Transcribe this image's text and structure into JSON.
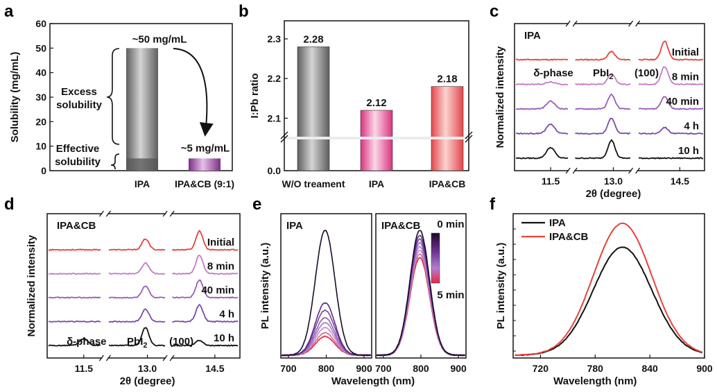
{
  "chart_data": [
    {
      "panel": "a",
      "type": "bar",
      "ylabel": "Solubility (mg/mL)",
      "ylim": [
        0,
        60
      ],
      "yticks": [
        0,
        10,
        20,
        30,
        40,
        50,
        60
      ],
      "categories": [
        "IPA",
        "IPA&CB (9:1)"
      ],
      "values": [
        50,
        5
      ],
      "effective_portion": 5,
      "annotations": {
        "v1": "~50 mg/mL",
        "v2": "~5 mg/mL",
        "excess": [
          "Excess",
          "solubility"
        ],
        "effective": [
          "Effective",
          "solubility"
        ]
      },
      "colors": [
        "#8a8a8a",
        "#a45ca8"
      ]
    },
    {
      "panel": "b",
      "type": "bar",
      "ylabel": "I:Pb ratio",
      "ylim": [
        2.0,
        2.3
      ],
      "yticks": [
        0.0,
        2.1,
        2.2,
        2.3
      ],
      "axis_break": true,
      "categories": [
        "W/O treament",
        "IPA",
        "IPA&CB"
      ],
      "values": [
        2.28,
        2.12,
        2.18
      ],
      "value_labels": [
        "2.28",
        "2.12",
        "2.18"
      ],
      "colors": [
        "#7d7d7d",
        "#e0609c",
        "#ea6a6a"
      ]
    },
    {
      "panel": "c",
      "type": "line",
      "solvent": "IPA",
      "ylabel": "Normalized intensity",
      "xlabel": "2θ (degree)",
      "xticks": [
        "11.5",
        "13.0",
        "14.5"
      ],
      "peaks": [
        "δ-phase",
        "PbI2",
        "(100)"
      ],
      "series": [
        {
          "name": "Initial",
          "delta": 0.0,
          "pbi2": 0.45,
          "p100": 0.9
        },
        {
          "name": "8 min",
          "delta": 0.15,
          "pbi2": 0.6,
          "p100": 0.85
        },
        {
          "name": "40 min",
          "delta": 0.5,
          "pbi2": 0.8,
          "p100": 0.6
        },
        {
          "name": "4 h",
          "delta": 0.6,
          "pbi2": 0.85,
          "p100": 0.3
        },
        {
          "name": "10 h",
          "delta": 0.7,
          "pbi2": 1.0,
          "p100": 0.0
        }
      ]
    },
    {
      "panel": "d",
      "type": "line",
      "solvent": "IPA&CB",
      "ylabel": "Normalized intensity",
      "xlabel": "2θ (degree)",
      "xticks": [
        "11.5",
        "13.0",
        "14.5"
      ],
      "peaks": [
        "δ-phase",
        "PbI2",
        "(100)"
      ],
      "series": [
        {
          "name": "Initial",
          "delta": 0.0,
          "pbi2": 0.6,
          "p100": 0.9
        },
        {
          "name": "8 min",
          "delta": 0.0,
          "pbi2": 0.6,
          "p100": 0.9
        },
        {
          "name": "40 min",
          "delta": 0.0,
          "pbi2": 0.65,
          "p100": 0.85
        },
        {
          "name": "4 h",
          "delta": 0.0,
          "pbi2": 0.7,
          "p100": 0.8
        },
        {
          "name": "10 h",
          "delta": 0.45,
          "pbi2": 1.0,
          "p100": 0.25
        }
      ]
    },
    {
      "panel": "e",
      "type": "line",
      "ylabel": "PL intensity (a.u.)",
      "xlabel": "Wavelength (nm)",
      "xlim": [
        680,
        920
      ],
      "xticks": [
        700,
        800,
        900
      ],
      "subplots": [
        {
          "label": "IPA",
          "peak_x": 797,
          "amplitudes": [
            1.0,
            0.42,
            0.36,
            0.3,
            0.26,
            0.22,
            0.18,
            0.15
          ]
        },
        {
          "label": "IPA&CB",
          "peak_x": 797,
          "amplitudes": [
            1.0,
            0.96,
            0.93,
            0.9,
            0.87,
            0.84,
            0.81,
            0.78
          ]
        }
      ],
      "colorbar": {
        "top": "0 min",
        "bottom": "5 min"
      }
    },
    {
      "panel": "f",
      "type": "line",
      "ylabel": "PL intensity (a.u.)",
      "xlabel": "Wavelength (nm)",
      "xlim": [
        690,
        900
      ],
      "xticks": [
        720,
        780,
        840,
        900
      ],
      "series": [
        {
          "name": "IPA",
          "color": "#111111",
          "peak_x": 810,
          "amplitude": 0.82
        },
        {
          "name": "IPA&CB",
          "color": "#e8413c",
          "peak_x": 810,
          "amplitude": 1.0
        }
      ]
    }
  ]
}
